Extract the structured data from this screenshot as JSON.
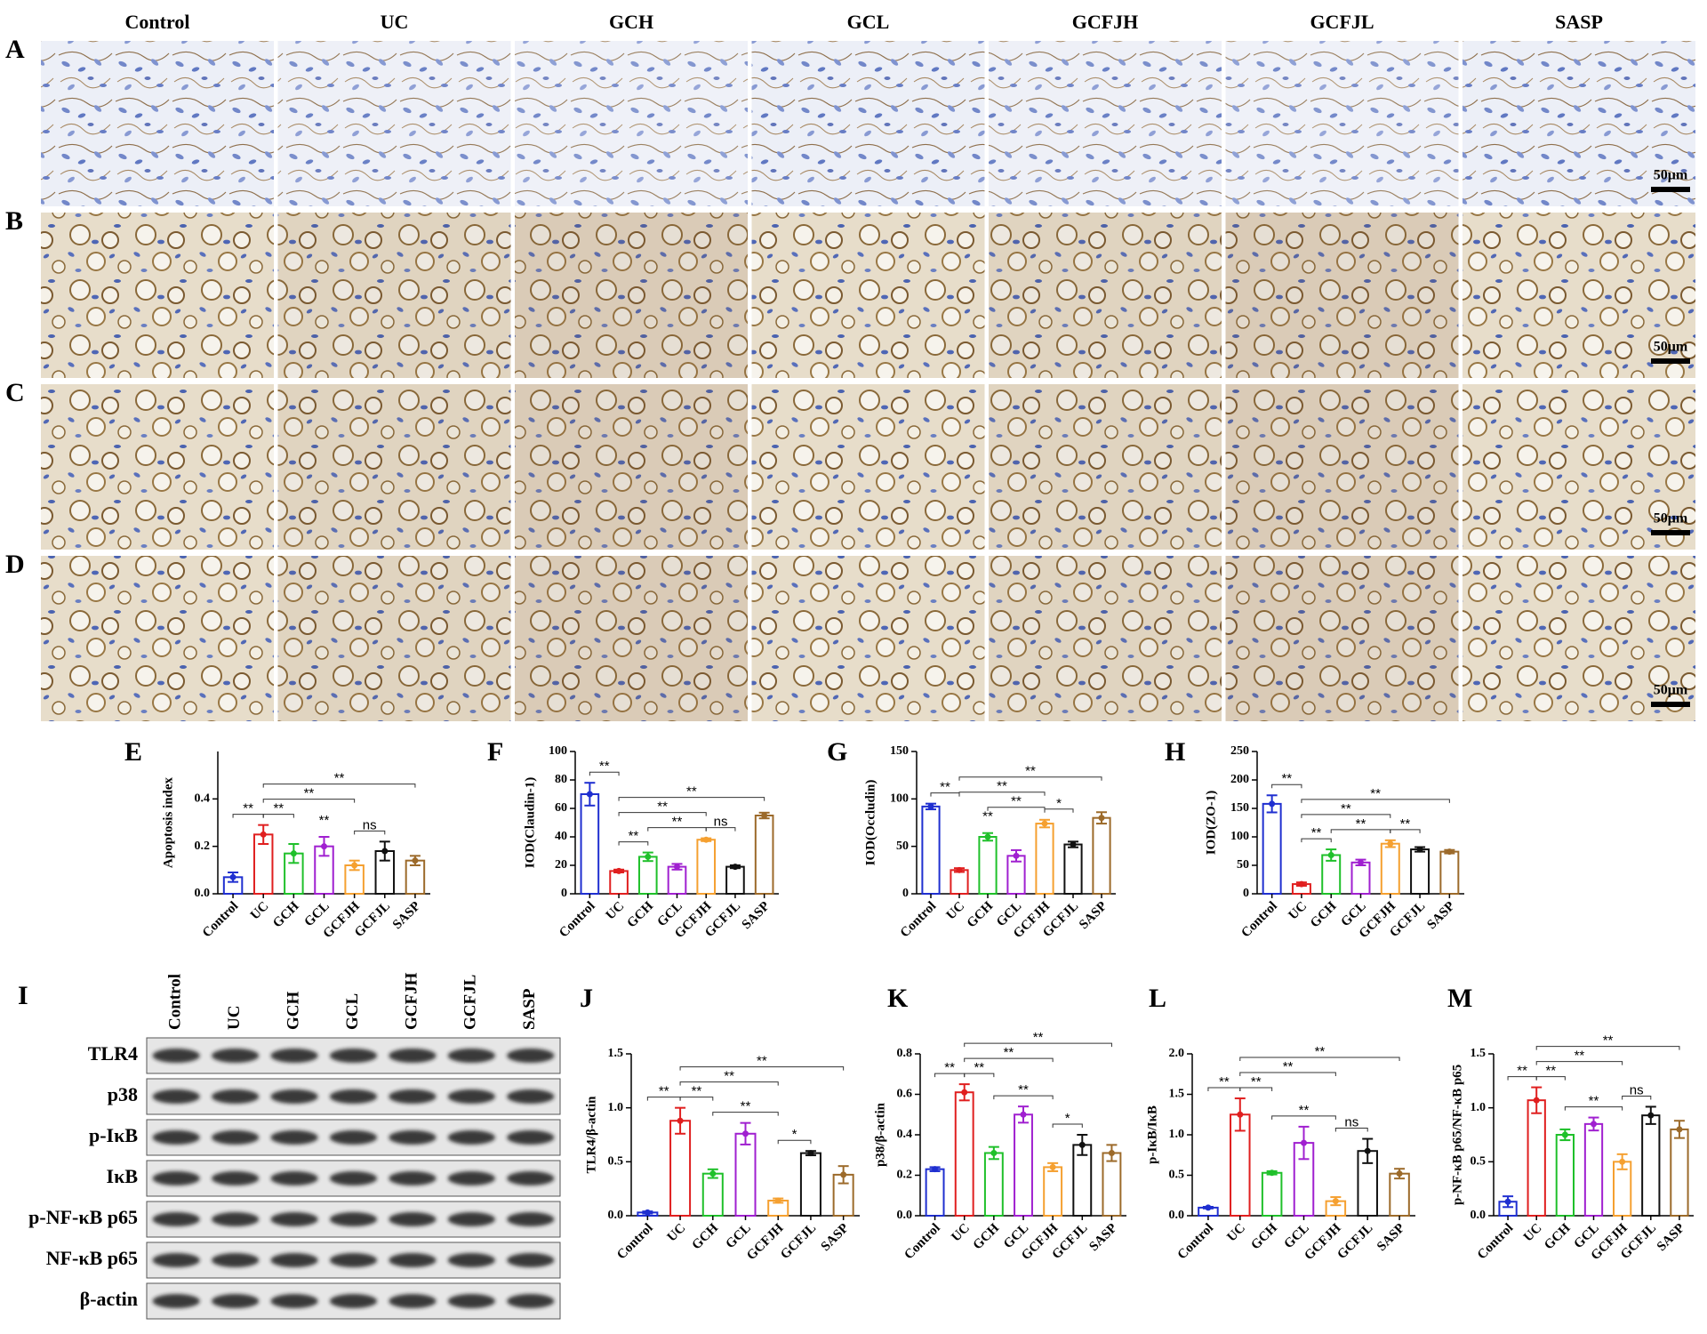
{
  "histology": {
    "columns": [
      "Control",
      "UC",
      "GCH",
      "GCL",
      "GCFJH",
      "GCFJL",
      "SASP"
    ],
    "rows": [
      "A",
      "B",
      "C",
      "D"
    ],
    "scale_bar": "50μm"
  },
  "western_blot": {
    "panel": "I",
    "lanes": [
      "Control",
      "UC",
      "GCH",
      "GCL",
      "GCFJH",
      "GCFJL",
      "SASP"
    ],
    "proteins": [
      "TLR4",
      "p38",
      "p-IκB",
      "IκB",
      "p-NF-κB p65",
      "NF-κB p65",
      "β-actin"
    ]
  },
  "chart_data": [
    {
      "type": "bar",
      "panel": "E",
      "ylabel": "Apoptosis index",
      "categories": [
        "Control",
        "UC",
        "GCH",
        "GCL",
        "GCFJH",
        "GCFJL",
        "SASP"
      ],
      "values": [
        0.07,
        0.25,
        0.17,
        0.2,
        0.12,
        0.18,
        0.14
      ],
      "errors": [
        0.02,
        0.04,
        0.04,
        0.04,
        0.02,
        0.04,
        0.02
      ],
      "colors": [
        "#1f2fd0",
        "#e01f1f",
        "#1fc02a",
        "#a020d0",
        "#f5a030",
        "#111111",
        "#9c6a2a"
      ],
      "ylim": [
        0,
        0.6
      ],
      "yticks": [
        {
          "value": 0,
          "label": "0.0"
        },
        0.2,
        0.4
      ],
      "annotations": [
        {
          "label": "**",
          "between": [
            "Control",
            "UC"
          ]
        },
        {
          "label": "**",
          "between": [
            "UC",
            "GCH"
          ]
        },
        {
          "label": "**",
          "between": [
            "GCL"
          ]
        },
        {
          "label": "ns",
          "between": [
            "GCFJH",
            "GCFJL"
          ]
        },
        {
          "label": "**",
          "between": [
            "UC",
            "GCFJH"
          ]
        },
        {
          "label": "**",
          "between": [
            "UC",
            "SASP"
          ]
        }
      ]
    },
    {
      "type": "bar",
      "panel": "F",
      "ylabel": "IOD(Claudin-1)",
      "categories": [
        "Control",
        "UC",
        "GCH",
        "GCL",
        "GCFJH",
        "GCFJL",
        "SASP"
      ],
      "values": [
        70,
        16,
        26,
        19,
        38,
        19,
        55
      ],
      "errors": [
        8,
        1,
        3,
        2,
        1,
        1,
        2
      ],
      "colors": [
        "#1f2fd0",
        "#e01f1f",
        "#1fc02a",
        "#a020d0",
        "#f5a030",
        "#111111",
        "#9c6a2a"
      ],
      "ylim": [
        0,
        100
      ],
      "yticks": [
        0,
        20,
        40,
        60,
        80,
        100
      ],
      "annotations": [
        {
          "label": "**",
          "between": [
            "Control",
            "UC"
          ]
        },
        {
          "label": "**",
          "between": [
            "UC",
            "GCH"
          ]
        },
        {
          "label": "ns",
          "between": [
            "GCFJH",
            "GCFJL"
          ]
        },
        {
          "label": "**",
          "between": [
            "GCH",
            "GCFJH"
          ]
        },
        {
          "label": "**",
          "between": [
            "UC",
            "GCFJH"
          ]
        },
        {
          "label": "**",
          "between": [
            "UC",
            "SASP"
          ]
        }
      ]
    },
    {
      "type": "bar",
      "panel": "G",
      "ylabel": "IOD(Occludin)",
      "categories": [
        "Control",
        "UC",
        "GCH",
        "GCL",
        "GCFJH",
        "GCFJL",
        "SASP"
      ],
      "values": [
        92,
        25,
        60,
        40,
        74,
        52,
        80
      ],
      "errors": [
        3,
        2,
        4,
        6,
        4,
        3,
        6
      ],
      "colors": [
        "#1f2fd0",
        "#e01f1f",
        "#1fc02a",
        "#a020d0",
        "#f5a030",
        "#111111",
        "#9c6a2a"
      ],
      "ylim": [
        0,
        150
      ],
      "yticks": [
        0,
        50,
        100,
        150
      ],
      "annotations": [
        {
          "label": "**",
          "between": [
            "Control",
            "UC"
          ]
        },
        {
          "label": "**",
          "between": [
            "GCH"
          ]
        },
        {
          "label": "*",
          "between": [
            "GCFJH",
            "GCFJL"
          ]
        },
        {
          "label": "**",
          "between": [
            "GCH",
            "GCFJH"
          ]
        },
        {
          "label": "**",
          "between": [
            "UC",
            "GCFJH"
          ]
        },
        {
          "label": "**",
          "between": [
            "UC",
            "SASP"
          ]
        }
      ]
    },
    {
      "type": "bar",
      "panel": "H",
      "ylabel": "IOD(ZO-1)",
      "categories": [
        "Control",
        "UC",
        "GCH",
        "GCL",
        "GCFJH",
        "GCFJL",
        "SASP"
      ],
      "values": [
        158,
        17,
        68,
        55,
        88,
        78,
        74
      ],
      "errors": [
        15,
        3,
        10,
        5,
        6,
        4,
        3
      ],
      "colors": [
        "#1f2fd0",
        "#e01f1f",
        "#1fc02a",
        "#a020d0",
        "#f5a030",
        "#111111",
        "#9c6a2a"
      ],
      "ylim": [
        0,
        250
      ],
      "yticks": [
        0,
        50,
        100,
        150,
        200,
        250
      ],
      "annotations": [
        {
          "label": "**",
          "between": [
            "Control",
            "UC"
          ]
        },
        {
          "label": "**",
          "between": [
            "UC",
            "GCH"
          ]
        },
        {
          "label": "**",
          "between": [
            "GCFJH",
            "GCFJL"
          ]
        },
        {
          "label": "**",
          "between": [
            "GCH",
            "GCFJH"
          ]
        },
        {
          "label": "**",
          "between": [
            "UC",
            "GCFJH"
          ]
        },
        {
          "label": "**",
          "between": [
            "UC",
            "SASP"
          ]
        }
      ]
    },
    {
      "type": "bar",
      "panel": "J",
      "ylabel": "TLR4/β-actin",
      "categories": [
        "Control",
        "UC",
        "GCH",
        "GCL",
        "GCFJH",
        "GCFJL",
        "SASP"
      ],
      "values": [
        0.03,
        0.88,
        0.39,
        0.76,
        0.14,
        0.58,
        0.38
      ],
      "errors": [
        0.01,
        0.12,
        0.04,
        0.1,
        0.02,
        0.02,
        0.08
      ],
      "colors": [
        "#1f2fd0",
        "#e01f1f",
        "#1fc02a",
        "#a020d0",
        "#f5a030",
        "#111111",
        "#9c6a2a"
      ],
      "ylim": [
        0,
        1.5
      ],
      "yticks": [
        {
          "value": 0,
          "label": "0.0"
        },
        0.5,
        {
          "value": 1,
          "label": "1.0"
        },
        1.5
      ],
      "annotations": [
        {
          "label": "**",
          "between": [
            "Control",
            "UC"
          ]
        },
        {
          "label": "**",
          "between": [
            "UC",
            "GCH"
          ]
        },
        {
          "label": "*",
          "between": [
            "GCFJH",
            "GCFJL"
          ]
        },
        {
          "label": "**",
          "between": [
            "GCH",
            "GCFJH"
          ]
        },
        {
          "label": "**",
          "between": [
            "UC",
            "GCFJH"
          ]
        },
        {
          "label": "**",
          "between": [
            "UC",
            "SASP"
          ]
        }
      ]
    },
    {
      "type": "bar",
      "panel": "K",
      "ylabel": "p38/β-actin",
      "categories": [
        "Control",
        "UC",
        "GCH",
        "GCL",
        "GCFJH",
        "GCFJL",
        "SASP"
      ],
      "values": [
        0.23,
        0.61,
        0.31,
        0.5,
        0.24,
        0.35,
        0.31
      ],
      "errors": [
        0.01,
        0.04,
        0.03,
        0.04,
        0.02,
        0.05,
        0.04
      ],
      "colors": [
        "#1f2fd0",
        "#e01f1f",
        "#1fc02a",
        "#a020d0",
        "#f5a030",
        "#111111",
        "#9c6a2a"
      ],
      "ylim": [
        0,
        0.8
      ],
      "yticks": [
        {
          "value": 0,
          "label": "0.0"
        },
        0.2,
        0.4,
        0.6,
        0.8
      ],
      "annotations": [
        {
          "label": "**",
          "between": [
            "Control",
            "UC"
          ]
        },
        {
          "label": "**",
          "between": [
            "UC",
            "GCH"
          ]
        },
        {
          "label": "*",
          "between": [
            "GCFJH",
            "GCFJL"
          ]
        },
        {
          "label": "**",
          "between": [
            "GCH",
            "GCFJH"
          ]
        },
        {
          "label": "**",
          "between": [
            "UC",
            "GCFJH"
          ]
        },
        {
          "label": "**",
          "between": [
            "UC",
            "SASP"
          ]
        }
      ]
    },
    {
      "type": "bar",
      "panel": "L",
      "ylabel": "p-IκB/IκB",
      "categories": [
        "Control",
        "UC",
        "GCH",
        "GCL",
        "GCFJH",
        "GCFJL",
        "SASP"
      ],
      "values": [
        0.1,
        1.25,
        0.53,
        0.9,
        0.18,
        0.8,
        0.52
      ],
      "errors": [
        0.01,
        0.2,
        0.02,
        0.2,
        0.05,
        0.15,
        0.06
      ],
      "colors": [
        "#1f2fd0",
        "#e01f1f",
        "#1fc02a",
        "#a020d0",
        "#f5a030",
        "#111111",
        "#9c6a2a"
      ],
      "ylim": [
        0,
        2
      ],
      "yticks": [
        {
          "value": 0,
          "label": "0.0"
        },
        0.5,
        {
          "value": 1,
          "label": "1.0"
        },
        1.5,
        {
          "value": 2,
          "label": "2.0"
        }
      ],
      "annotations": [
        {
          "label": "**",
          "between": [
            "Control",
            "UC"
          ]
        },
        {
          "label": "**",
          "between": [
            "UC",
            "GCH"
          ]
        },
        {
          "label": "ns",
          "between": [
            "GCFJH",
            "GCFJL"
          ]
        },
        {
          "label": "**",
          "between": [
            "GCH",
            "GCFJH"
          ]
        },
        {
          "label": "**",
          "between": [
            "UC",
            "GCFJH"
          ]
        },
        {
          "label": "**",
          "between": [
            "UC",
            "SASP"
          ]
        }
      ]
    },
    {
      "type": "bar",
      "panel": "M",
      "ylabel": "p-NF-κB p65/NF-κB p65",
      "categories": [
        "Control",
        "UC",
        "GCH",
        "GCL",
        "GCFJH",
        "GCFJL",
        "SASP"
      ],
      "values": [
        0.13,
        1.07,
        0.75,
        0.85,
        0.5,
        0.93,
        0.8
      ],
      "errors": [
        0.05,
        0.12,
        0.05,
        0.06,
        0.07,
        0.08,
        0.08
      ],
      "colors": [
        "#1f2fd0",
        "#e01f1f",
        "#1fc02a",
        "#a020d0",
        "#f5a030",
        "#111111",
        "#9c6a2a"
      ],
      "ylim": [
        0,
        1.5
      ],
      "yticks": [
        {
          "value": 0,
          "label": "0.0"
        },
        0.5,
        {
          "value": 1,
          "label": "1.0"
        },
        1.5
      ],
      "annotations": [
        {
          "label": "**",
          "between": [
            "Control",
            "UC"
          ]
        },
        {
          "label": "**",
          "between": [
            "UC",
            "GCH"
          ]
        },
        {
          "label": "ns",
          "between": [
            "GCFJH",
            "GCFJL"
          ]
        },
        {
          "label": "**",
          "between": [
            "GCH",
            "GCFJH"
          ]
        },
        {
          "label": "**",
          "between": [
            "UC",
            "GCFJH"
          ]
        },
        {
          "label": "**",
          "between": [
            "UC",
            "SASP"
          ]
        }
      ]
    }
  ]
}
